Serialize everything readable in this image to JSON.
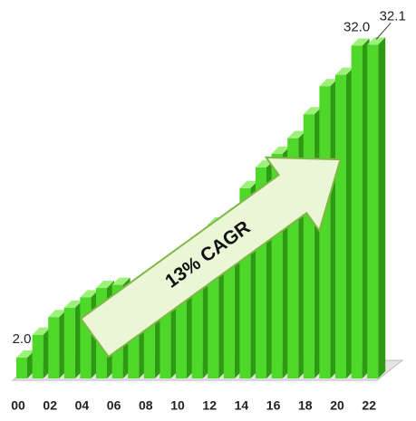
{
  "chart_data": {
    "type": "bar3d",
    "annotation": "13% CAGR",
    "categories": [
      "00",
      null,
      "02",
      null,
      "04",
      null,
      "06",
      null,
      "08",
      null,
      "10",
      null,
      "12",
      null,
      "14",
      null,
      "16",
      null,
      "18",
      null,
      "20",
      null,
      "22"
    ],
    "values": [
      2.0,
      4.2,
      5.9,
      6.8,
      7.8,
      8.7,
      9.0,
      8.7,
      9.2,
      9.4,
      10.4,
      12.9,
      14.8,
      15.7,
      18.3,
      20.3,
      21.6,
      23.1,
      25.4,
      28.1,
      29.2,
      32.0,
      32.1
    ],
    "value_labels": [
      "2.0",
      null,
      null,
      null,
      null,
      null,
      null,
      null,
      null,
      null,
      null,
      null,
      null,
      null,
      null,
      null,
      null,
      null,
      null,
      null,
      null,
      "32.0",
      "32.1"
    ],
    "color": "#4ed82a",
    "ylim": [
      0,
      35
    ]
  }
}
